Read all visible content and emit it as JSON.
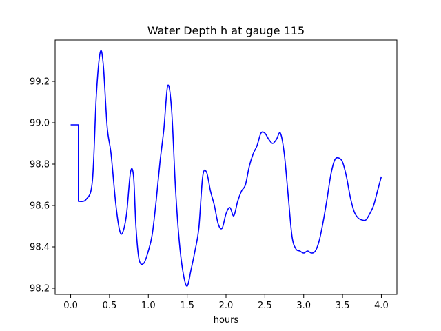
{
  "chart_data": {
    "type": "line",
    "title": "Water Depth h at gauge 115",
    "xlabel": "hours",
    "ylabel": "",
    "xlim": [
      -0.2,
      4.2
    ],
    "ylim": [
      98.17,
      99.4
    ],
    "grid": false,
    "xticks": [
      0.0,
      0.5,
      1.0,
      1.5,
      2.0,
      2.5,
      3.0,
      3.5,
      4.0
    ],
    "xtick_labels": [
      "0.0",
      "0.5",
      "1.0",
      "1.5",
      "2.0",
      "2.5",
      "3.0",
      "3.5",
      "4.0"
    ],
    "yticks": [
      98.2,
      98.4,
      98.6,
      98.8,
      99.0,
      99.2
    ],
    "ytick_labels": [
      "98.2",
      "98.4",
      "98.6",
      "98.8",
      "99.0",
      "99.2"
    ],
    "line_color": "#0000ff",
    "series": [
      {
        "x": [
          0.0,
          0.1,
          0.1,
          0.2,
          0.28,
          0.33,
          0.38,
          0.42,
          0.47,
          0.52,
          0.58,
          0.63,
          0.67,
          0.72,
          0.77,
          0.81,
          0.84,
          0.88,
          0.94,
          1.0,
          1.05,
          1.1,
          1.15,
          1.2,
          1.25,
          1.3,
          1.35,
          1.4,
          1.45,
          1.5,
          1.55,
          1.6,
          1.65,
          1.7,
          1.75,
          1.8,
          1.85,
          1.9,
          1.95,
          2.0,
          2.05,
          2.1,
          2.15,
          2.2,
          2.25,
          2.3,
          2.35,
          2.4,
          2.45,
          2.5,
          2.55,
          2.6,
          2.65,
          2.7,
          2.75,
          2.8,
          2.85,
          2.9,
          2.95,
          3.0,
          3.05,
          3.1,
          3.15,
          3.2,
          3.25,
          3.3,
          3.35,
          3.4,
          3.45,
          3.5,
          3.55,
          3.6,
          3.65,
          3.7,
          3.75,
          3.8,
          3.85,
          3.9,
          3.95,
          4.0
        ],
        "y": [
          98.99,
          98.99,
          98.62,
          98.63,
          98.72,
          99.13,
          99.34,
          99.28,
          98.98,
          98.85,
          98.61,
          98.48,
          98.47,
          98.56,
          98.76,
          98.74,
          98.5,
          98.34,
          98.32,
          98.38,
          98.46,
          98.62,
          98.81,
          98.97,
          99.18,
          99.06,
          98.68,
          98.42,
          98.27,
          98.21,
          98.29,
          98.38,
          98.49,
          98.74,
          98.76,
          98.67,
          98.6,
          98.51,
          98.49,
          98.56,
          98.59,
          98.55,
          98.62,
          98.67,
          98.7,
          98.79,
          98.85,
          98.89,
          98.95,
          98.95,
          98.92,
          98.9,
          98.92,
          98.95,
          98.85,
          98.65,
          98.45,
          98.39,
          98.38,
          98.37,
          98.38,
          98.37,
          98.38,
          98.43,
          98.52,
          98.63,
          98.75,
          98.82,
          98.83,
          98.81,
          98.74,
          98.64,
          98.57,
          98.54,
          98.53,
          98.53,
          98.56,
          98.6,
          98.67,
          98.74
        ]
      }
    ]
  }
}
